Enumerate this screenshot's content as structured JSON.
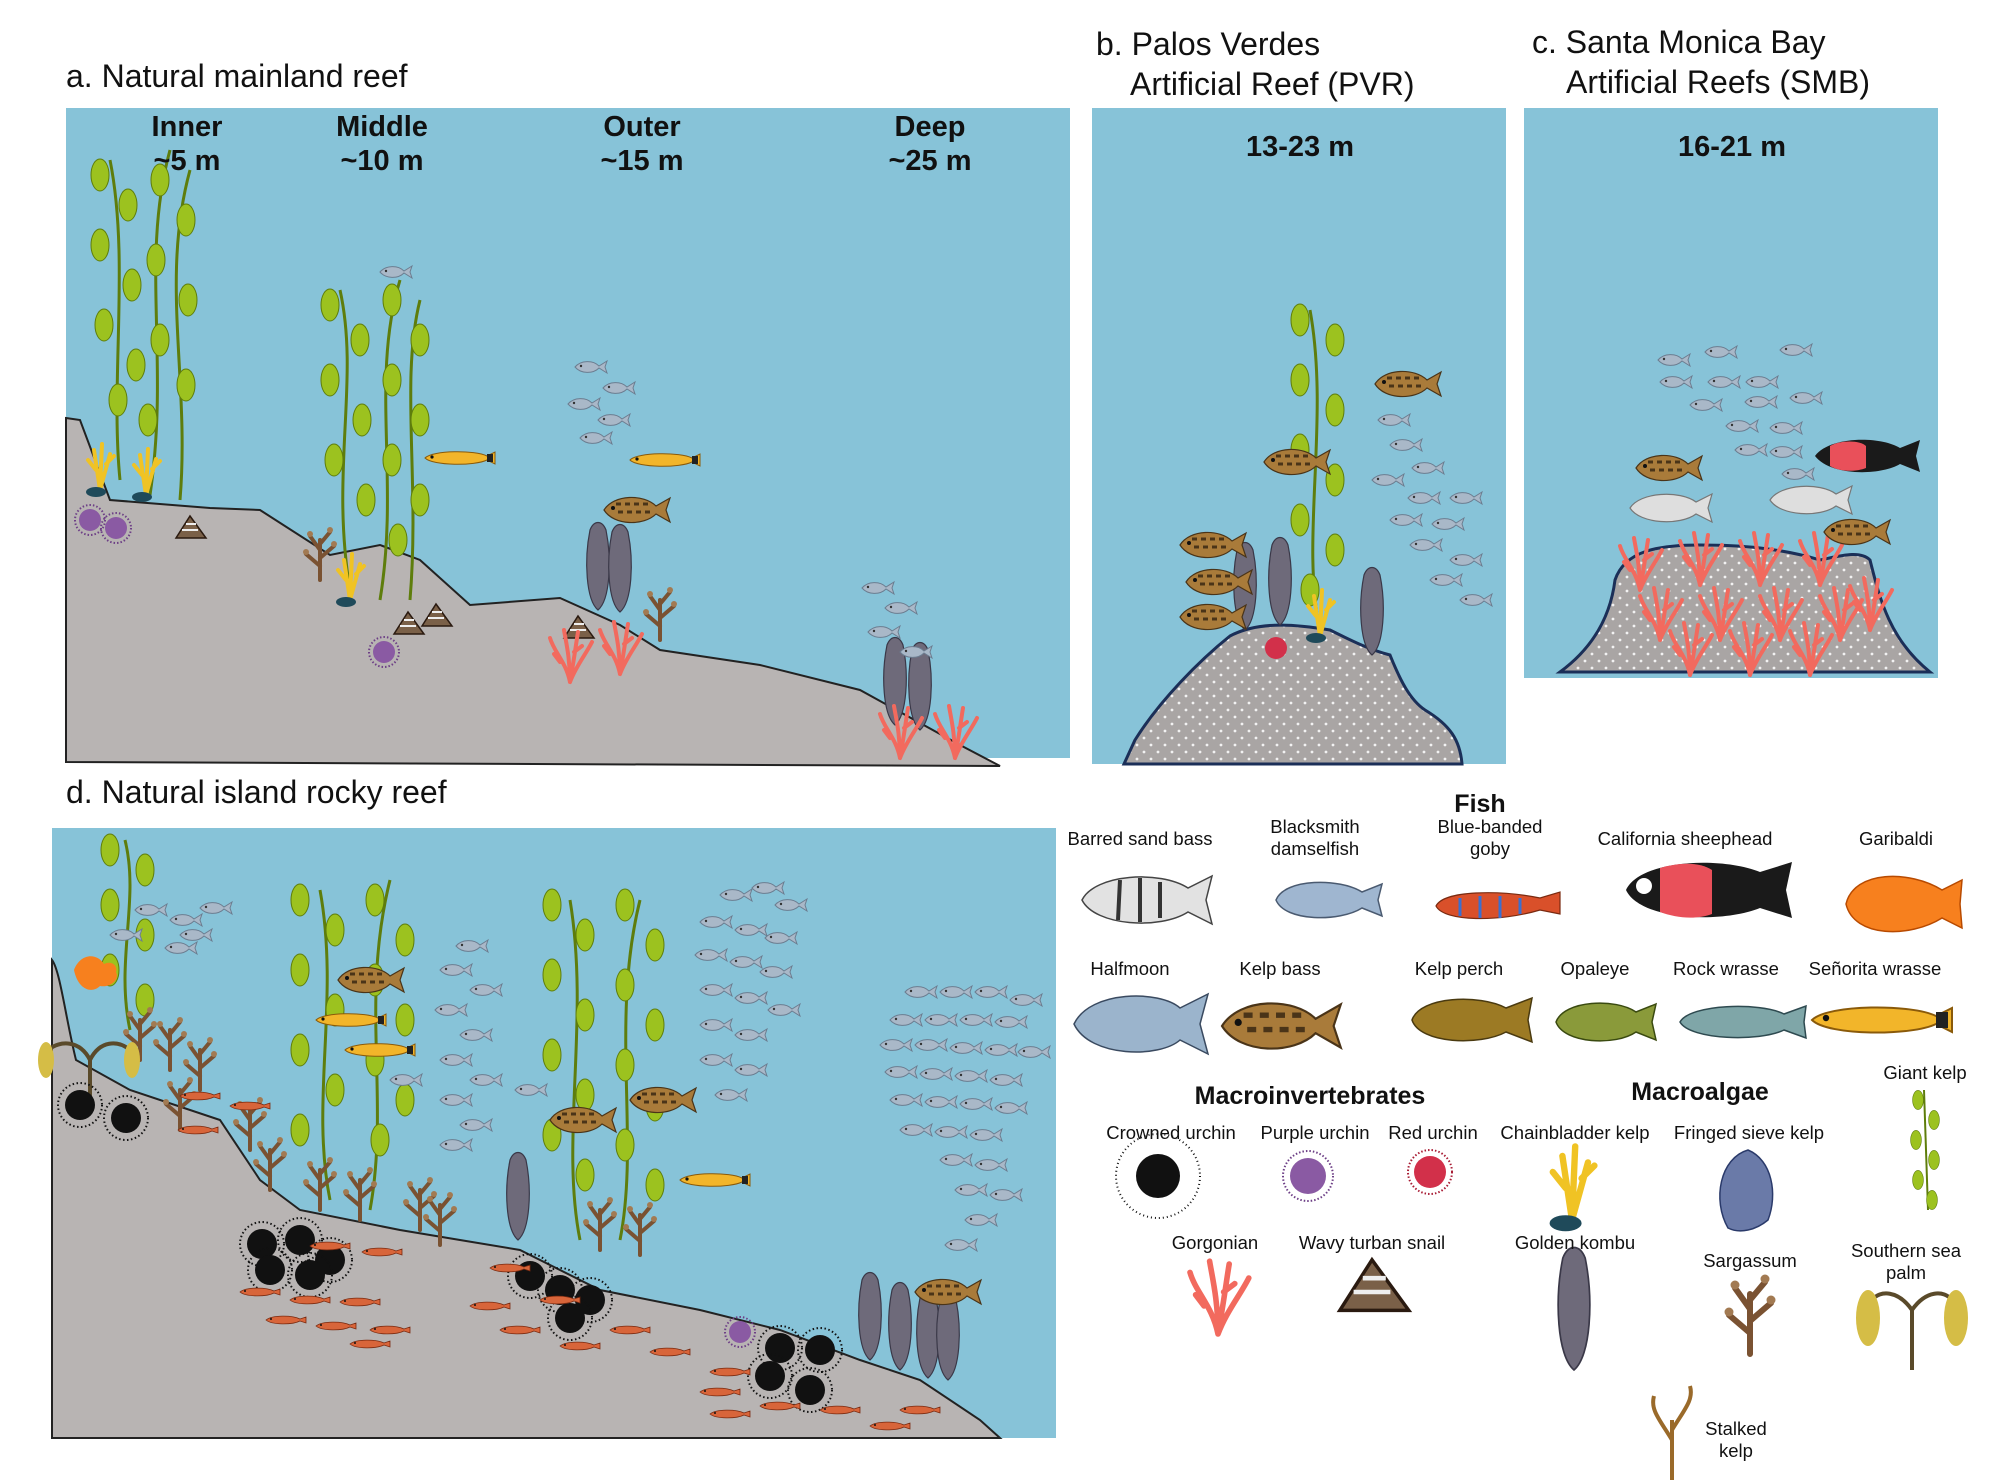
{
  "panels": {
    "a": {
      "title": "a. Natural mainland reef",
      "zones": [
        {
          "name": "Inner",
          "depth": "~5 m"
        },
        {
          "name": "Middle",
          "depth": "~10 m"
        },
        {
          "name": "Outer",
          "depth": "~15 m"
        },
        {
          "name": "Deep",
          "depth": "~25 m"
        }
      ]
    },
    "b": {
      "title_line1": "b. Palos Verdes",
      "title_line2": "Artificial Reef (PVR)",
      "depth": "13-23 m"
    },
    "c": {
      "title_line1": "c. Santa Monica Bay",
      "title_line2": "Artificial Reefs (SMB)",
      "depth": "16-21 m"
    },
    "d": {
      "title": "d. Natural island rocky reef"
    }
  },
  "legend": {
    "fish_heading": "Fish",
    "fish": [
      "Barred sand bass",
      "Blacksmith\ndamselfish",
      "Blue-banded\ngoby",
      "California sheephead",
      "Garibaldi",
      "Halfmoon",
      "Kelp bass",
      "Kelp perch",
      "Opaleye",
      "Rock wrasse",
      "Señorita wrasse"
    ],
    "invert_heading": "Macroinvertebrates",
    "inverts": [
      "Crowned urchin",
      "Purple urchin",
      "Red urchin",
      "Gorgonian",
      "Wavy turban snail"
    ],
    "algae_heading": "Macroalgae",
    "algae": [
      "Chainbladder kelp",
      "Fringed sieve kelp",
      "Giant kelp",
      "Golden kombu",
      "Sargassum",
      "Southern sea\npalm",
      "Stalked\nkelp"
    ]
  },
  "colors": {
    "water": "#87c3d8",
    "rock": "#bbb7b5",
    "kelp": "#8fba1c",
    "fish_school": "#a9b8c8",
    "gorgonian": "#f26a5e",
    "sheephead_red": "#e9505a",
    "garibaldi": "#f7801e",
    "urchin_black": "#1a1a1a",
    "urchin_purple": "#8a5aa3"
  }
}
